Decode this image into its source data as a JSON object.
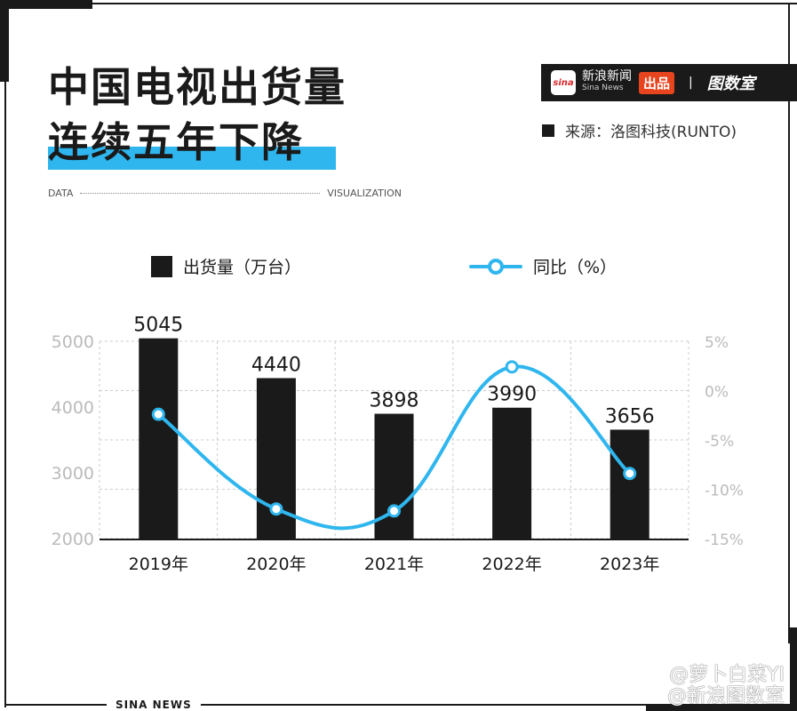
{
  "header": {
    "title_line1": "中国电视出货量",
    "title_line2": "连续五年下降",
    "tag_left": "DATA",
    "tag_right": "VISUALIZATION",
    "brand": {
      "logo": "sina",
      "name_cn": "新浪新闻",
      "name_en": "Sina News",
      "badge": "出品",
      "separator": "|",
      "partner": "图数室"
    },
    "source": "来源：洛图科技(RUNTO)"
  },
  "footer": {
    "label": "SINA NEWS",
    "watermark_line1": "@萝卜白菜YI",
    "watermark_line2": "@新浪图数室"
  },
  "colors": {
    "bar": "#1a1a1a",
    "line": "#2fb6ee",
    "highlight": "#2fb6ee",
    "badge": "#e8451e"
  },
  "chart_data": {
    "type": "bar+line",
    "categories": [
      "2019年",
      "2020年",
      "2021年",
      "2022年",
      "2023年"
    ],
    "series": [
      {
        "name": "出货量（万台）",
        "type": "bar",
        "axis": "left",
        "values": [
          5045,
          4440,
          3898,
          3990,
          3656
        ]
      },
      {
        "name": "同比（%）",
        "type": "line",
        "axis": "right",
        "values": [
          -2.4,
          -12.0,
          -12.2,
          2.4,
          -8.4
        ]
      }
    ],
    "left_axis": {
      "range": [
        2000,
        5000
      ],
      "ticks": [
        "2000",
        "3000",
        "4000",
        "5000"
      ]
    },
    "right_axis": {
      "range": [
        -15,
        5
      ],
      "ticks": [
        "-15%",
        "-10%",
        "-5%",
        "0%",
        "5%"
      ]
    },
    "data_labels": [
      "5045",
      "4440",
      "3898",
      "3990",
      "3656"
    ],
    "grid": true,
    "legend": "top"
  }
}
